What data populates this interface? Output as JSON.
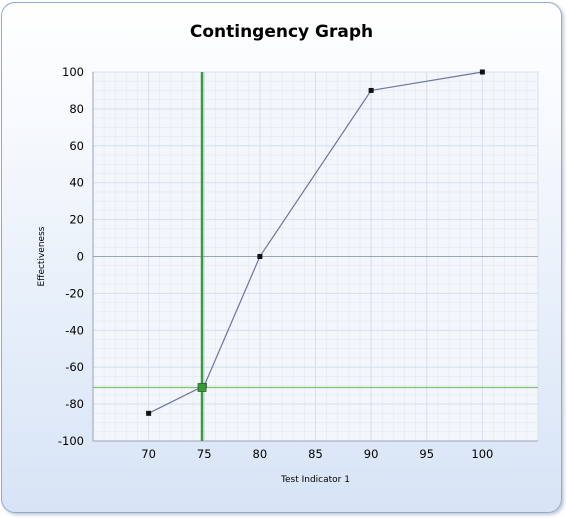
{
  "chart_data": {
    "type": "line",
    "title": "Contingency Graph",
    "xlabel": "Test Indicator 1",
    "ylabel": "Effectiveness",
    "xlim": [
      65,
      105
    ],
    "ylim": [
      -100,
      100
    ],
    "x_ticks": [
      70,
      75,
      80,
      85,
      90,
      95,
      100
    ],
    "y_ticks": [
      100,
      80,
      60,
      40,
      20,
      0,
      -20,
      -40,
      -60,
      -80,
      -100
    ],
    "grid": true,
    "legend": "none",
    "series": [
      {
        "x": [
          70,
          75,
          80,
          90,
          100
        ],
        "y": [
          -85,
          -70,
          0,
          90,
          100
        ],
        "color": "#6f75a0"
      }
    ],
    "crosshair": {
      "x": 74.8,
      "y": -71,
      "color": "#3a9a3a"
    },
    "colors": {
      "grid": "#d5dff0",
      "plot_bg": "#f3f6fb",
      "zero_line": "#9aa3b8"
    }
  }
}
